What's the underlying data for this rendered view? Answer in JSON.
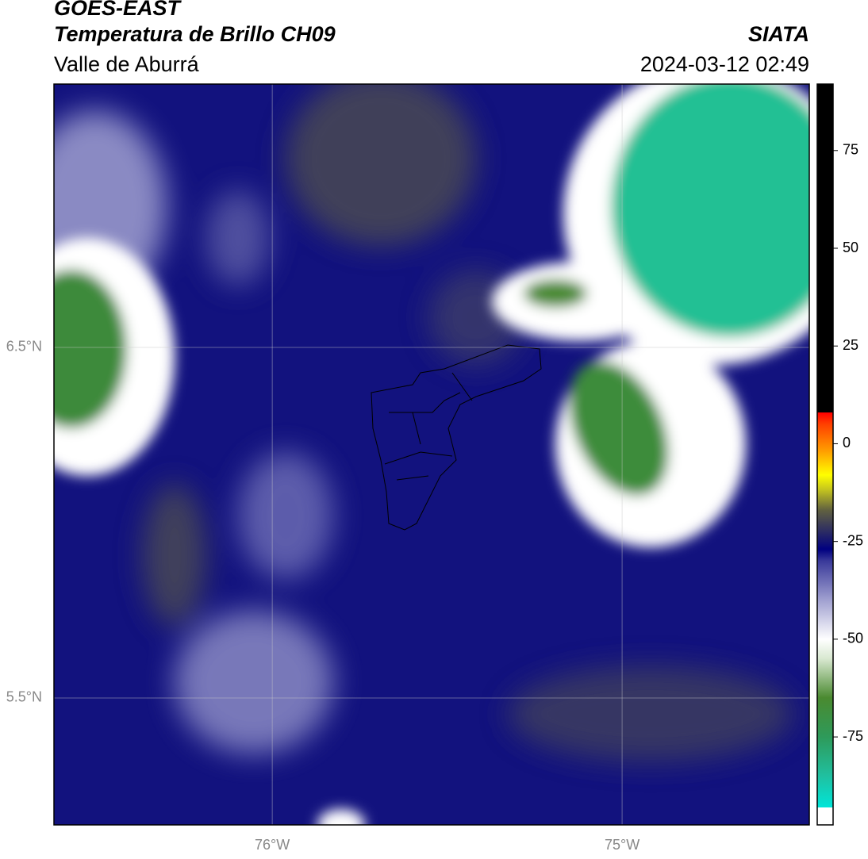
{
  "header": {
    "title": "GOES-EAST",
    "subtitle": "Temperatura de Brillo CH09",
    "region": "Valle de Aburrá",
    "source": "SIATA",
    "timestamp": "2024-03-12 02:49"
  },
  "chart_data": {
    "type": "map",
    "xlim": [
      -76.624,
      -74.465
    ],
    "ylim": [
      5.138,
      7.251
    ],
    "xticks": [
      {
        "value": -76,
        "label": "76°W"
      },
      {
        "value": -75,
        "label": "75°W"
      }
    ],
    "yticks": [
      {
        "value": 5.5,
        "label": "5.5°N"
      },
      {
        "value": 6.5,
        "label": "6.5°N"
      }
    ],
    "grid": true,
    "colorbar": {
      "lim": [
        -97.5,
        92
      ],
      "ticks": [
        -75,
        -50,
        -25,
        0,
        25,
        50,
        75
      ],
      "colormap": [
        {
          "value": -97.5,
          "color": "#ffffff"
        },
        {
          "value": -93,
          "color": "#ffffff"
        },
        {
          "value": -93,
          "color": "#00e5d8"
        },
        {
          "value": -85,
          "color": "#20c0a0"
        },
        {
          "value": -75,
          "color": "#2e9a5a"
        },
        {
          "value": -65,
          "color": "#4a8a30"
        },
        {
          "value": -55,
          "color": "#d8e8d0"
        },
        {
          "value": -50,
          "color": "#ffffff"
        },
        {
          "value": -40,
          "color": "#a0a0d0"
        },
        {
          "value": -30,
          "color": "#3a3a9a"
        },
        {
          "value": -27,
          "color": "#000080"
        },
        {
          "value": -22,
          "color": "#303060"
        },
        {
          "value": -17,
          "color": "#606040"
        },
        {
          "value": -12,
          "color": "#c0c020"
        },
        {
          "value": -8,
          "color": "#ffff00"
        },
        {
          "value": -2,
          "color": "#ffa000"
        },
        {
          "value": 5,
          "color": "#ff4000"
        },
        {
          "value": 8,
          "color": "#ff0000"
        },
        {
          "value": 8,
          "color": "#000000"
        },
        {
          "value": 92,
          "color": "#000000"
        }
      ]
    }
  }
}
